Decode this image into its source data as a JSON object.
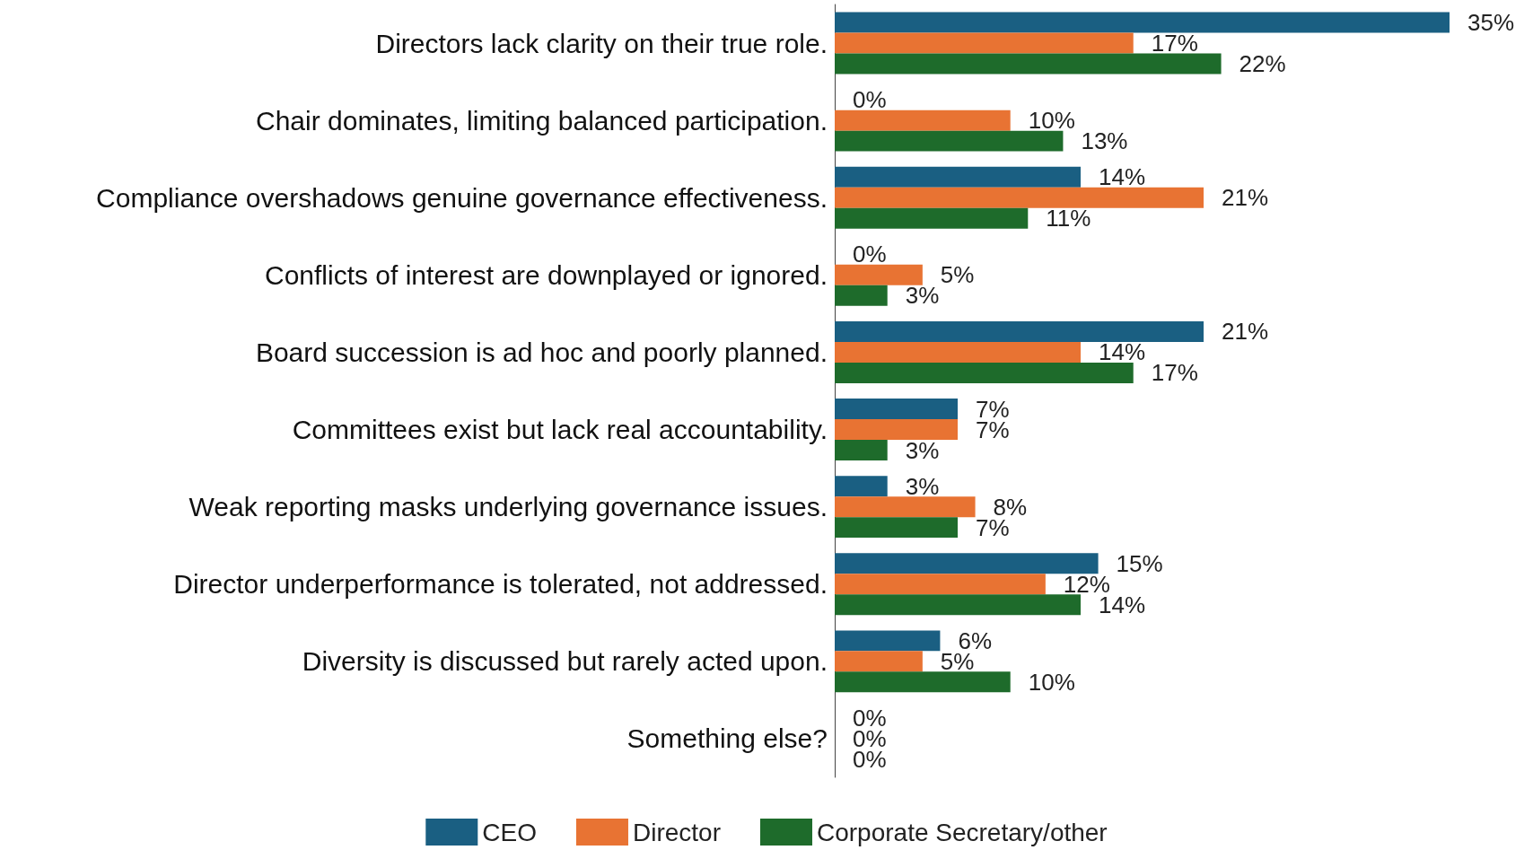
{
  "chart_data": {
    "type": "bar",
    "orientation": "horizontal",
    "legend": "bottom",
    "categories": [
      "Directors lack clarity on their true role.",
      "Chair dominates, limiting balanced participation.",
      "Compliance overshadows genuine governance effectiveness.",
      "Conflicts of interest are downplayed or ignored.",
      "Board succession is ad hoc and poorly planned.",
      "Committees exist but lack real accountability.",
      "Weak reporting masks underlying governance issues.",
      "Director underperformance is tolerated, not addressed.",
      "Diversity is discussed but rarely acted upon.",
      "Something else?"
    ],
    "series": [
      {
        "name": "CEO",
        "color": "#1a5f82",
        "values": [
          35,
          0,
          14,
          0,
          21,
          7,
          3,
          15,
          6,
          0
        ],
        "value_labels": [
          "35%",
          "0%",
          "14%",
          "0%",
          "21%",
          "7%",
          "3%",
          "15%",
          "6%",
          "0%"
        ]
      },
      {
        "name": "Director",
        "color": "#e87333",
        "values": [
          17,
          10,
          21,
          5,
          14,
          7,
          8,
          12,
          5,
          0
        ],
        "value_labels": [
          "17%",
          "10%",
          "21%",
          "5%",
          "14%",
          "7%",
          "8%",
          "12%",
          "5%",
          "0%"
        ]
      },
      {
        "name": "Corporate Secretary/other",
        "color": "#1e6b2b",
        "values": [
          22,
          13,
          11,
          3,
          17,
          3,
          7,
          14,
          10,
          0
        ],
        "value_labels": [
          "22%",
          "13%",
          "11%",
          "3%",
          "17%",
          "3%",
          "7%",
          "14%",
          "10%",
          "0%"
        ]
      }
    ]
  }
}
